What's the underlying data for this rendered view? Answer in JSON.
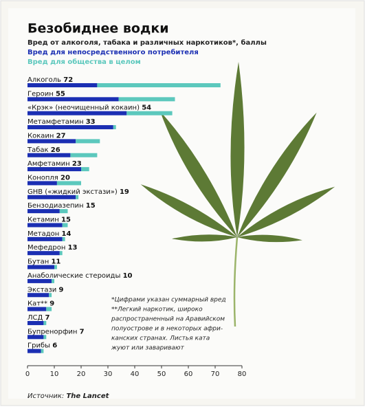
{
  "chart_data": {
    "type": "bar",
    "orientation": "horizontal",
    "stacked": true,
    "title": "Безобиднее водки",
    "subtitle": "Вред от алкоголя, табака и различных наркотиков*, баллы",
    "categories": [
      "Алкоголь",
      "Героин",
      "«Крэк» (неочищенный кокаин)",
      "Метамфетамин",
      "Кокаин",
      "Табак",
      "Амфетамин",
      "Конопля",
      "GHB («жидкий экстази»)",
      "Бензодиазепин",
      "Кетамин",
      "Метадон",
      "Мефедрон",
      "Бутан",
      "Анаболические стероиды",
      "Экстази",
      "Кат**",
      "ЛСД",
      "Бупренорфин",
      "Грибы"
    ],
    "totals": [
      72,
      55,
      54,
      33,
      27,
      26,
      23,
      20,
      19,
      15,
      15,
      14,
      13,
      11,
      10,
      9,
      9,
      7,
      7,
      6
    ],
    "series": [
      {
        "name": "Вред для непосредственного потребителя",
        "color": "#1b2fb3",
        "values": [
          26,
          34,
          37,
          32,
          18,
          16,
          20,
          11,
          18,
          12,
          13,
          13,
          12,
          10,
          9,
          8,
          7,
          6,
          6,
          5
        ]
      },
      {
        "name": "Вред для общества в целом",
        "color": "#5cc8bd",
        "values": [
          46,
          21,
          17,
          1,
          9,
          10,
          3,
          9,
          1,
          3,
          2,
          1,
          1,
          1,
          1,
          1,
          2,
          1,
          1,
          1
        ]
      }
    ],
    "xlim": [
      0,
      80
    ],
    "xticks": [
      0,
      10,
      20,
      30,
      40,
      50,
      60,
      70,
      80
    ],
    "notes": [
      "*Цифрами указан суммарный вред",
      "**Легкий наркотик, широко",
      "распространенный на Аравийском",
      "полуострове и в некоторых афри-",
      "канских странах. Листья ката",
      "жуют или заваривают"
    ],
    "source_label": "Источник:",
    "source": "The Lancet"
  }
}
